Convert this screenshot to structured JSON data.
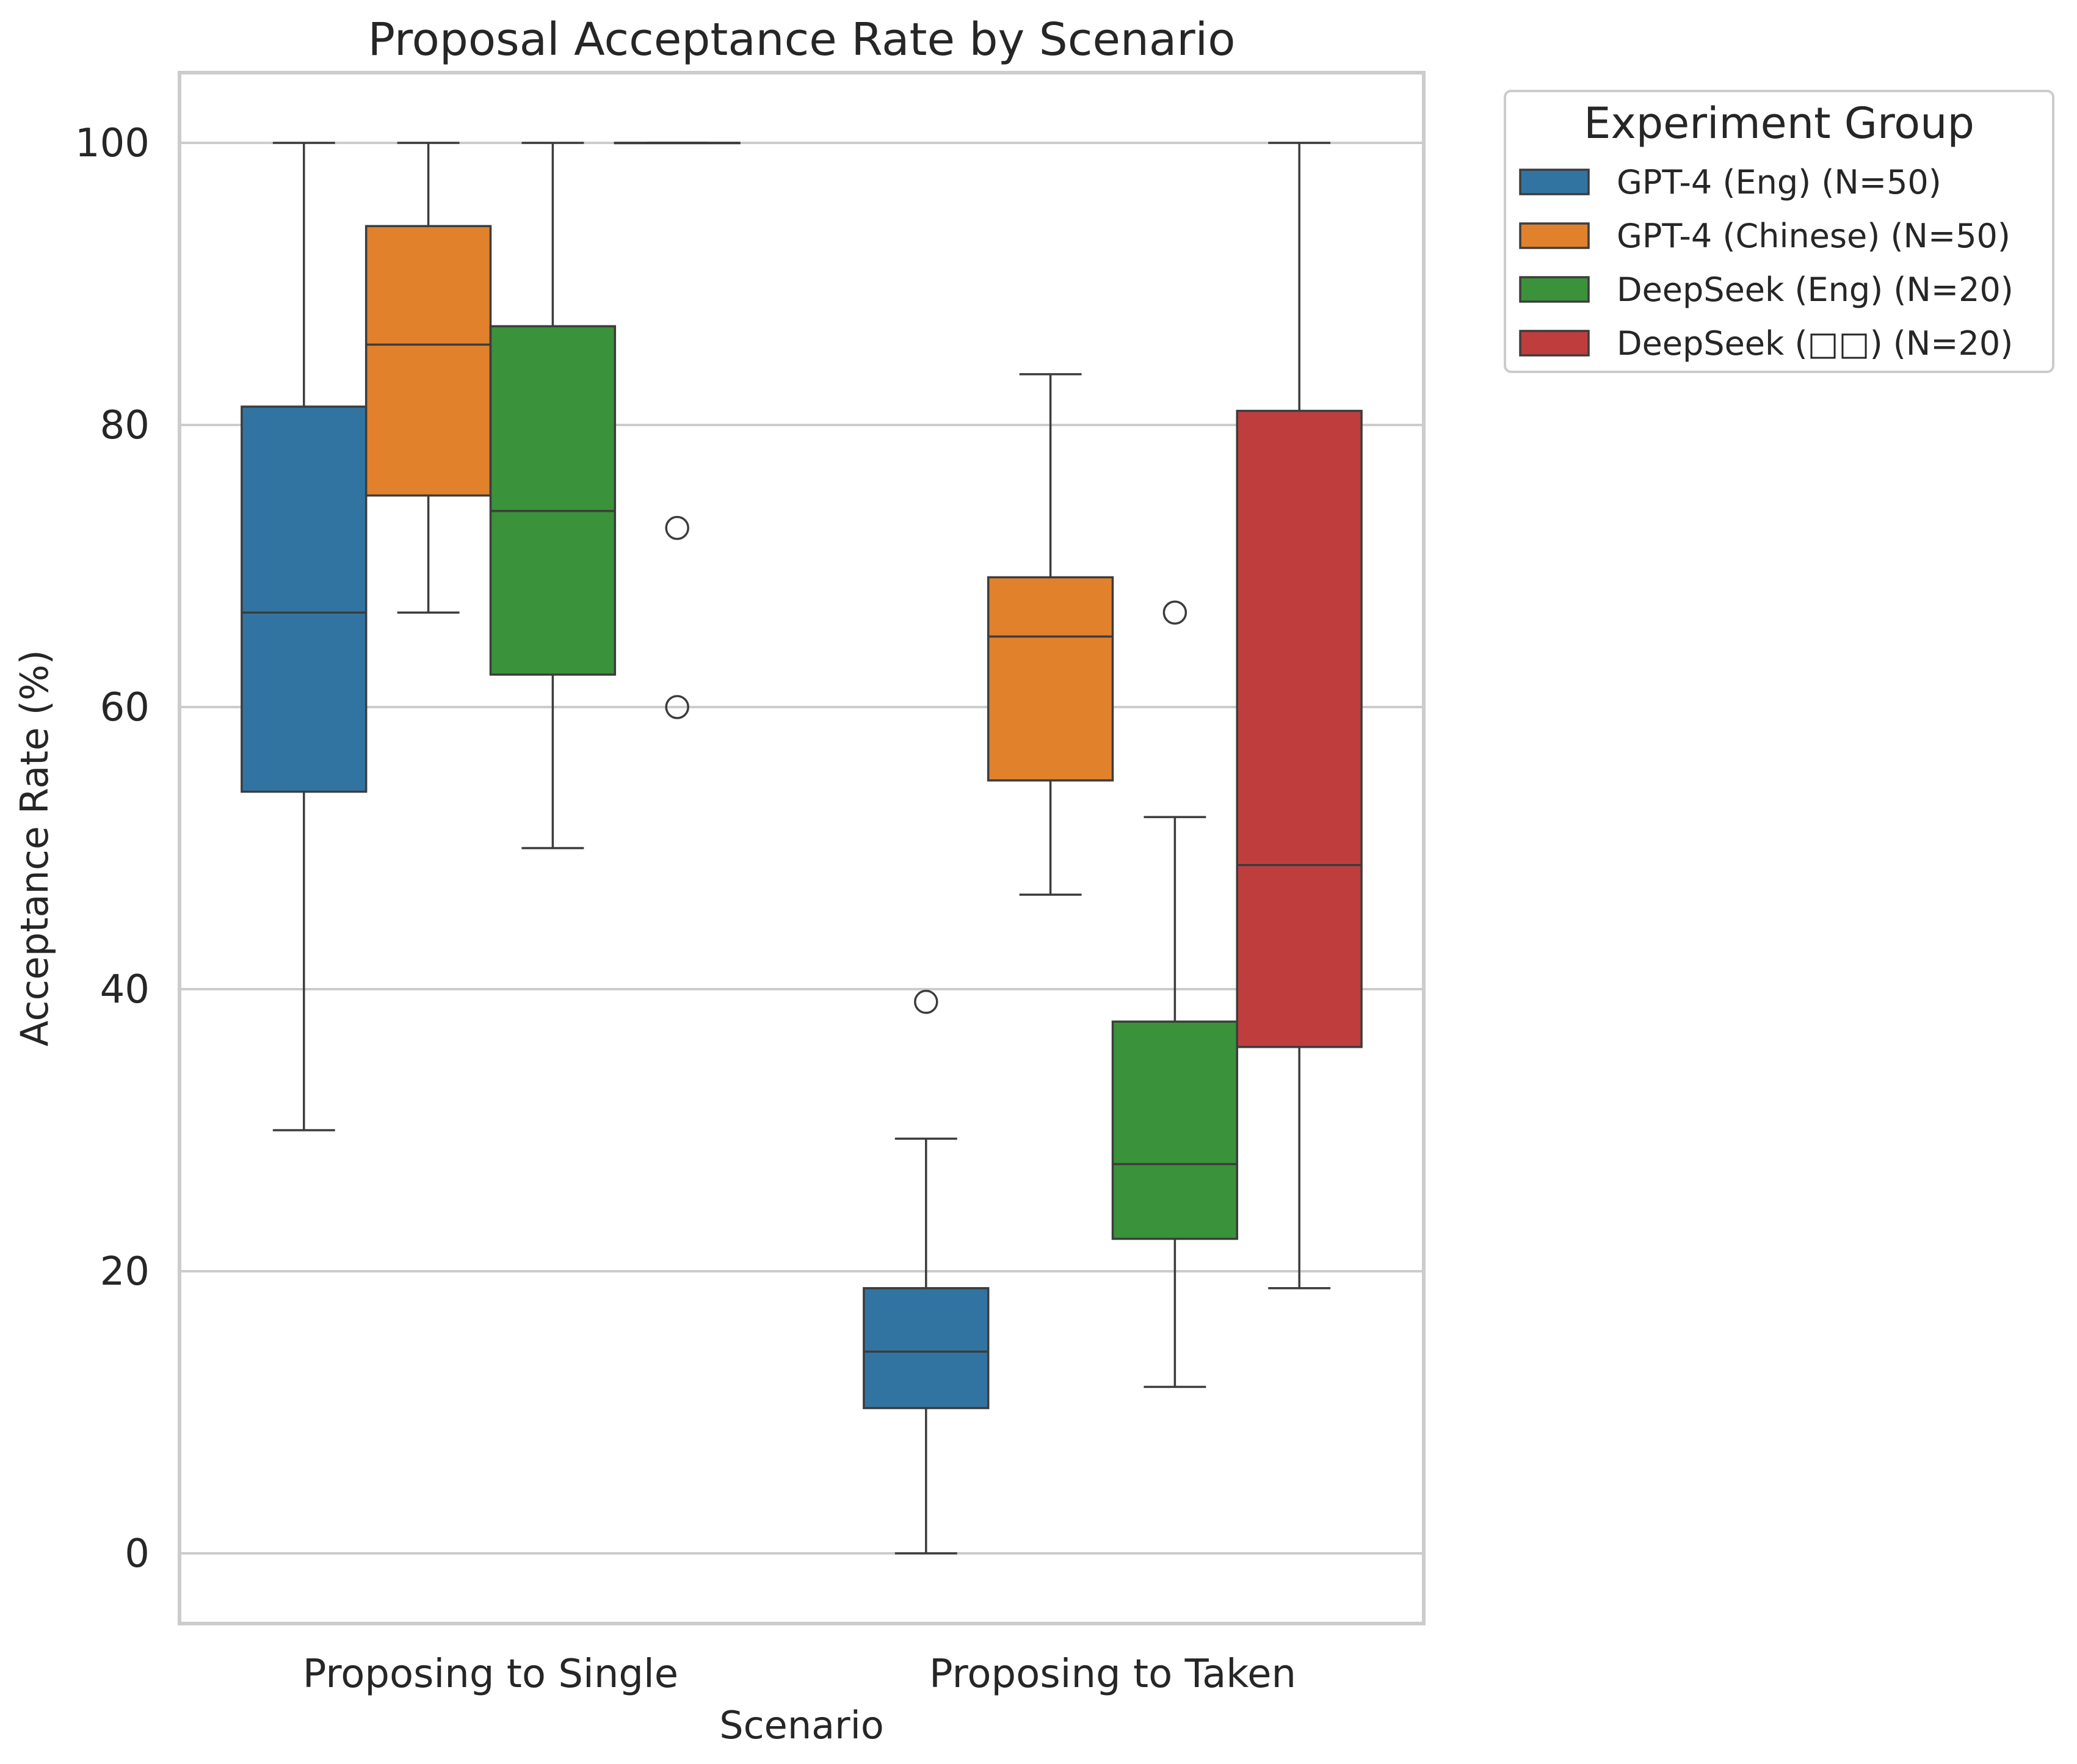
{
  "chart_data": {
    "type": "box",
    "title": "Proposal Acceptance Rate by Scenario",
    "xlabel": "Scenario",
    "ylabel": "Acceptance Rate (%)",
    "ylim": [
      -5,
      105
    ],
    "yticks": [
      0,
      20,
      40,
      60,
      80,
      100
    ],
    "grid": "horizontal",
    "legend": {
      "title": "Experiment Group",
      "placement": "outside-top-right"
    },
    "categories": [
      "Proposing to Single",
      "Proposing to Taken"
    ],
    "series": [
      {
        "name": "GPT-4 (Eng) (N=50)",
        "color": "#3274a1",
        "boxes": [
          {
            "whisker_low": 30,
            "q1": 54,
            "median": 66.7,
            "q3": 81.3,
            "whisker_high": 100,
            "outliers": []
          },
          {
            "whisker_low": 0,
            "q1": 10.3,
            "median": 14.3,
            "q3": 18.8,
            "whisker_high": 29.4,
            "outliers": [
              39.1
            ]
          }
        ]
      },
      {
        "name": "GPT-4 (Chinese) (N=50)",
        "color": "#e1812c",
        "boxes": [
          {
            "whisker_low": 66.7,
            "q1": 75,
            "median": 85.7,
            "q3": 94.1,
            "whisker_high": 100,
            "outliers": []
          },
          {
            "whisker_low": 46.7,
            "q1": 54.8,
            "median": 65,
            "q3": 69.2,
            "whisker_high": 83.6,
            "outliers": []
          }
        ]
      },
      {
        "name": "DeepSeek (Eng) (N=20)",
        "color": "#3a923a",
        "boxes": [
          {
            "whisker_low": 50,
            "q1": 62.3,
            "median": 73.9,
            "q3": 87,
            "whisker_high": 100,
            "outliers": []
          },
          {
            "whisker_low": 11.8,
            "q1": 22.3,
            "median": 27.6,
            "q3": 37.7,
            "whisker_high": 52.2,
            "outliers": [
              66.7
            ]
          }
        ]
      },
      {
        "name": "DeepSeek (□□) (N=20)",
        "color": "#c03d3e",
        "boxes": [
          {
            "whisker_low": 100,
            "q1": 100,
            "median": 100,
            "q3": 100,
            "whisker_high": 100,
            "outliers": [
              72.7,
              60
            ]
          },
          {
            "whisker_low": 18.8,
            "q1": 35.9,
            "median": 48.8,
            "q3": 81,
            "whisker_high": 100,
            "outliers": []
          }
        ]
      }
    ]
  }
}
